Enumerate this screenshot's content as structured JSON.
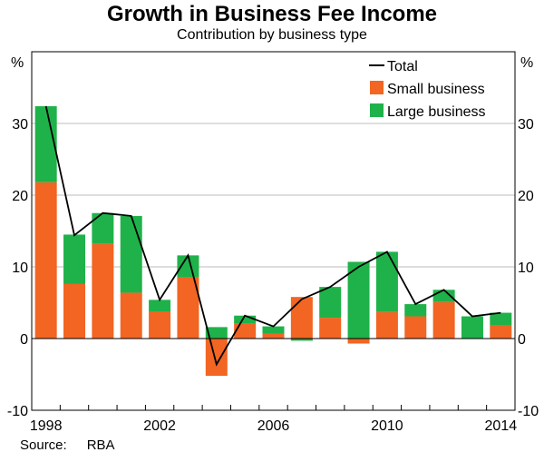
{
  "chart_data": {
    "type": "bar",
    "stacked": true,
    "title": "Growth in Business Fee Income",
    "subtitle": "Contribution by business type",
    "ylabel_left": "%",
    "ylabel_right": "%",
    "ylim": [
      -10,
      40
    ],
    "yticks": [
      -10,
      0,
      10,
      20,
      30
    ],
    "xticks": [
      "1998",
      "2002",
      "2006",
      "2010",
      "2014"
    ],
    "categories": [
      "1998",
      "1999",
      "2000",
      "2001",
      "2002",
      "2003",
      "2004",
      "2005",
      "2006",
      "2007",
      "2008",
      "2009",
      "2010",
      "2011",
      "2012",
      "2013",
      "2014"
    ],
    "series": [
      {
        "name": "Small business",
        "color": "#f26522",
        "values": [
          21.8,
          7.6,
          13.2,
          6.4,
          3.8,
          8.5,
          -5.2,
          2.1,
          0.7,
          5.8,
          2.9,
          -0.7,
          3.7,
          3.1,
          5.1,
          0.0,
          1.9
        ]
      },
      {
        "name": "Large business",
        "color": "#1fb24a",
        "values": [
          10.6,
          6.9,
          4.3,
          10.7,
          1.6,
          3.1,
          1.6,
          1.1,
          1.0,
          -0.3,
          4.3,
          10.7,
          8.4,
          1.7,
          1.7,
          3.1,
          1.7
        ]
      },
      {
        "name": "Total",
        "type": "line",
        "color": "#000000",
        "values": [
          32.4,
          14.4,
          17.5,
          17.1,
          5.4,
          11.6,
          -3.6,
          3.2,
          1.7,
          5.5,
          7.2,
          10.0,
          12.1,
          4.8,
          6.8,
          3.1,
          3.6
        ]
      }
    ],
    "legend": {
      "position": "top-right",
      "entries": [
        "Total",
        "Small business",
        "Large business"
      ]
    },
    "source_label": "Source:",
    "source_value": "RBA"
  }
}
